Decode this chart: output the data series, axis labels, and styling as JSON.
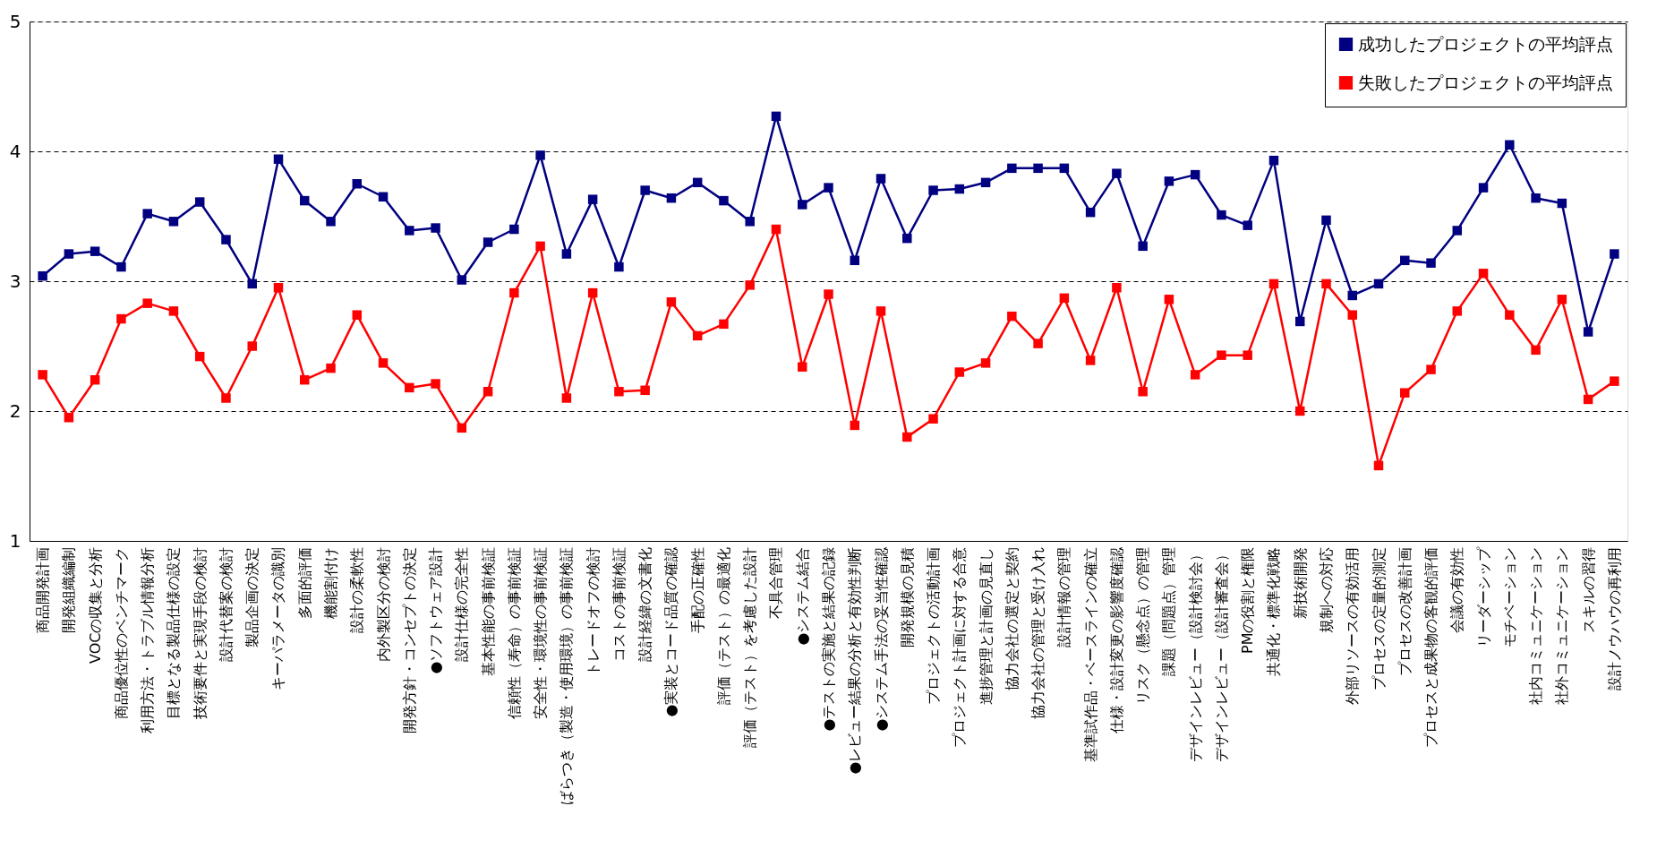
{
  "chart_data": {
    "type": "line",
    "categories": [
      "商品開発計画",
      "開発組織編制",
      "VOCの収集と分析",
      "商品優位性のベンチマーク",
      "利用方法・トラブル情報分析",
      "目標となる製品仕様の設定",
      "技術要件と実現手段の検討",
      "設計代替案の検討",
      "製品企画の決定",
      "キーパラメータの識別",
      "多面的評価",
      "機能割付け",
      "設計の柔軟性",
      "内外製区分の検討",
      "開発方針・コンセプトの決定",
      "●ソフトウェア設計",
      "設計仕様の完全性",
      "基本性能の事前検証",
      "信頼性（寿命）の事前検証",
      "安全性・環境性の事前検証",
      "ばらつき（製造・使用環境）の事前検証",
      "トレードオフの検討",
      "コストの事前検証",
      "設計経緯の文書化",
      "●実装とコード品質の確認",
      "手配の正確性",
      "評価（テスト）の最適化",
      "評価（テスト）を考慮した設計",
      "不具合管理",
      "●システム結合",
      "●テストの実施と結果の記録",
      "●レビュー結果の分析と有効性判断",
      "●システム手法の妥当性確認",
      "開発規模の見積",
      "プロジェクトの活動計画",
      "プロジェクト計画に対する合意",
      "進捗管理と計画の見直し",
      "協力会社の選定と契約",
      "協力会社の管理と受け入れ",
      "設計情報の管理",
      "基準試作品・ベースラインの確立",
      "仕様・設計変更の影響度確認",
      "リスク（懸念点）の管理",
      "課題（問題点）管理",
      "デザインレビュー（設計検討会）",
      "デザインレビュー（設計審査会）",
      "PMの役割と権限",
      "共通化・標準化戦略",
      "新技術開発",
      "規制への対応",
      "外部リソースの有効活用",
      "プロセスの定量的測定",
      "プロセスの改善計画",
      "プロセスと成果物の客観的評価",
      "会議の有効性",
      "リーダーシップ",
      "モチベーション",
      "社内コミュニケーション",
      "社外コミュニケーション",
      "スキルの習得",
      "設計ノウハウの再利用"
    ],
    "series": [
      {
        "name": "成功したプロジェクトの平均評点",
        "color": "#000080",
        "values": [
          3.04,
          3.21,
          3.23,
          3.11,
          3.52,
          3.46,
          3.61,
          3.32,
          2.98,
          3.94,
          3.62,
          3.46,
          3.75,
          3.65,
          3.39,
          3.41,
          3.01,
          3.3,
          3.4,
          3.97,
          3.21,
          3.63,
          3.11,
          3.7,
          3.64,
          3.76,
          3.62,
          3.46,
          4.27,
          3.59,
          3.72,
          3.16,
          3.79,
          3.33,
          3.7,
          3.71,
          3.76,
          3.87,
          3.87,
          3.87,
          3.53,
          3.83,
          3.27,
          3.77,
          3.82,
          3.51,
          3.43,
          3.93,
          2.69,
          3.47,
          2.89,
          2.98,
          3.16,
          3.14,
          3.39,
          3.72,
          4.05,
          3.64,
          3.6,
          2.61,
          3.21
        ]
      },
      {
        "name": "失敗したプロジェクトの平均評点",
        "color": "#ff0000",
        "values": [
          2.28,
          1.95,
          2.24,
          2.71,
          2.83,
          2.77,
          2.42,
          2.1,
          2.5,
          2.95,
          2.24,
          2.33,
          2.74,
          2.37,
          2.18,
          2.21,
          1.87,
          2.15,
          2.91,
          3.27,
          2.1,
          2.91,
          2.15,
          2.16,
          2.84,
          2.58,
          2.67,
          2.97,
          3.4,
          2.34,
          2.9,
          1.89,
          2.77,
          1.8,
          1.94,
          2.3,
          2.37,
          2.73,
          2.52,
          2.87,
          2.39,
          2.95,
          2.15,
          2.86,
          2.28,
          2.43,
          2.43,
          2.98,
          2.0,
          2.98,
          2.74,
          1.58,
          2.14,
          2.32,
          2.77,
          3.06,
          2.74,
          2.47,
          2.86,
          2.09,
          2.23
        ]
      }
    ],
    "ylim": [
      1,
      5
    ],
    "yticks": [
      1,
      2,
      3,
      4,
      5
    ],
    "grid": "y",
    "legend": "top right",
    "marker": "square",
    "line_style": "solid"
  }
}
